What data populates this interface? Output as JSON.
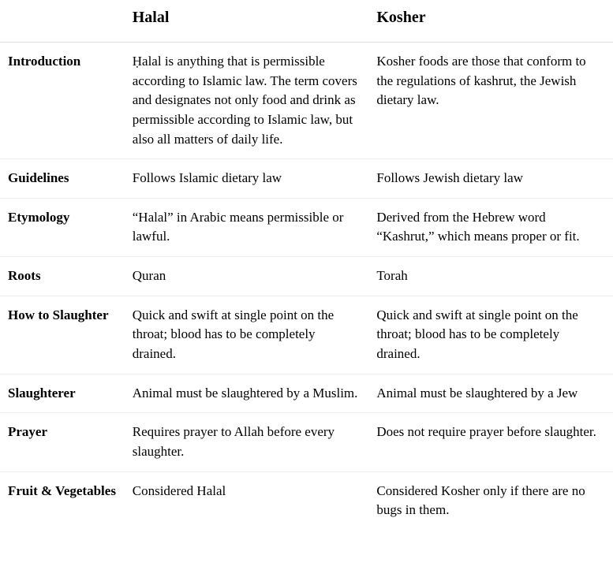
{
  "table": {
    "headers": {
      "empty": "",
      "halal": "Halal",
      "kosher": "Kosher"
    },
    "rows": [
      {
        "label": "Introduction",
        "halal": "Ḥalal is anything that is permissible according to Islamic law. The term covers and designates not only food and drink as permissible according to Islamic law, but also all matters of daily life.",
        "kosher": "Kosher foods are those that conform to the regulations of kashrut, the Jewish dietary law."
      },
      {
        "label": "Guidelines",
        "halal": "Follows Islamic dietary law",
        "kosher": "Follows Jewish dietary law"
      },
      {
        "label": "Etymology",
        "halal": "“Halal” in Arabic means permissible or lawful.",
        "kosher": "Derived from the Hebrew word “Kashrut,” which means proper or fit."
      },
      {
        "label": "Roots",
        "halal": "Quran",
        "kosher": "Torah"
      },
      {
        "label": "How to Slaughter",
        "halal": "Quick and swift at single point on the throat; blood has to be completely drained.",
        "kosher": "Quick and swift at single point on the throat; blood has to be completely drained."
      },
      {
        "label": "Slaughterer",
        "halal": "Animal must be slaughtered by a Muslim.",
        "kosher": "Animal must be slaughtered by a Jew"
      },
      {
        "label": "Prayer",
        "halal": "Requires prayer to Allah before every slaughter.",
        "kosher": "Does not require prayer before slaughter."
      },
      {
        "label": "Fruit & Vegetables",
        "halal": "Considered Halal",
        "kosher": "Considered Kosher only if there are no bugs in them."
      }
    ]
  }
}
